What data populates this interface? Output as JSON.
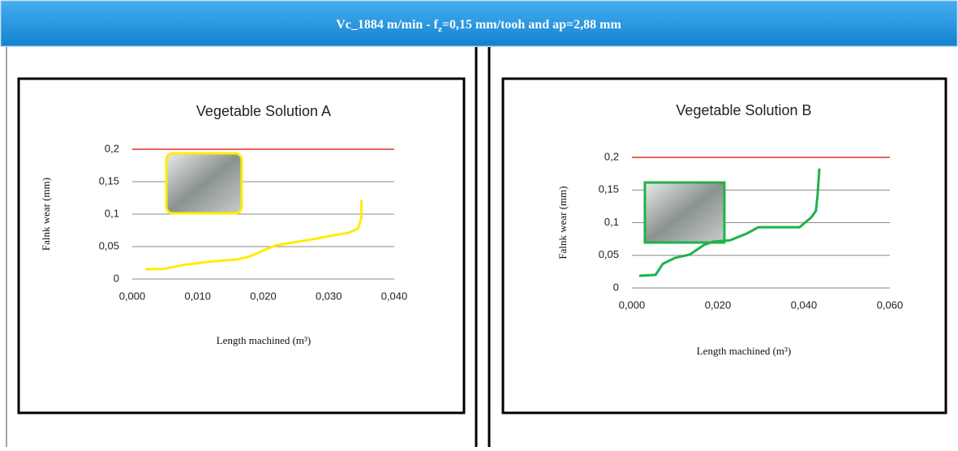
{
  "header": {
    "title": "Vc_1884 m/min  - f",
    "subscript": "z",
    "title_rest": "=0,15 mm/tooh  and ap=2,88 mm"
  },
  "chart_data": [
    {
      "type": "line",
      "title": "Vegetable Solution  A",
      "x_label": "Length machined (m³)",
      "y_label": "Falnk wear (mm)",
      "xlim": [
        0,
        0.04
      ],
      "xticks": [
        {
          "value": 0,
          "label": "0,000"
        },
        {
          "value": 0.01,
          "label": "0,010"
        },
        {
          "value": 0.02,
          "label": "0,020"
        },
        {
          "value": 0.03,
          "label": "0,030"
        },
        {
          "value": 0.04,
          "label": "0,040"
        }
      ],
      "ylim": [
        0,
        0.2
      ],
      "yticks": [
        0,
        {
          "value": 0.05,
          "label": "0,05"
        },
        {
          "value": 0.1,
          "label": "0,1"
        },
        {
          "value": 0.15,
          "label": "0,15"
        },
        {
          "value": 0.2,
          "label": "0,2"
        }
      ],
      "grid": true,
      "threshold": {
        "value": 0.2,
        "color": "#e0302a"
      },
      "series": [
        {
          "color": "#ffee00",
          "x": [
            0.002,
            0.005,
            0.008,
            0.012,
            0.016,
            0.018,
            0.02,
            0.022,
            0.025,
            0.028,
            0.031,
            0.033,
            0.0345,
            0.035,
            0.035
          ],
          "values": [
            0.015,
            0.016,
            0.022,
            0.027,
            0.03,
            0.035,
            0.044,
            0.052,
            0.057,
            0.062,
            0.068,
            0.071,
            0.078,
            0.095,
            0.122
          ]
        }
      ]
    },
    {
      "type": "line",
      "title": "Vegetable Solution B",
      "x_label": "Length machined (m³)",
      "y_label": "Falnk wear (mm)",
      "xlim": [
        0,
        0.06
      ],
      "xticks": [
        {
          "value": 0,
          "label": "0,000"
        },
        {
          "value": 0.02,
          "label": "0,020"
        },
        {
          "value": 0.04,
          "label": "0,040"
        },
        {
          "value": 0.06,
          "label": "0,060"
        }
      ],
      "ylim": [
        0,
        0.2
      ],
      "yticks": [
        0,
        {
          "value": 0.05,
          "label": "0,05"
        },
        {
          "value": 0.1,
          "label": "0,1"
        },
        {
          "value": 0.15,
          "label": "0,15"
        },
        {
          "value": 0.2,
          "label": "0,2"
        }
      ],
      "grid": true,
      "threshold": {
        "value": 0.2,
        "color": "#e0302a"
      },
      "series": [
        {
          "color": "#1fb24a",
          "x": [
            0.0017,
            0.0055,
            0.0072,
            0.01,
            0.0134,
            0.0168,
            0.019,
            0.0228,
            0.0266,
            0.0294,
            0.0342,
            0.039,
            0.0417,
            0.0428,
            0.0432,
            0.0436
          ],
          "values": [
            0.0186,
            0.02,
            0.037,
            0.046,
            0.051,
            0.066,
            0.071,
            0.073,
            0.083,
            0.093,
            0.093,
            0.093,
            0.108,
            0.118,
            0.143,
            0.183
          ]
        }
      ]
    }
  ]
}
